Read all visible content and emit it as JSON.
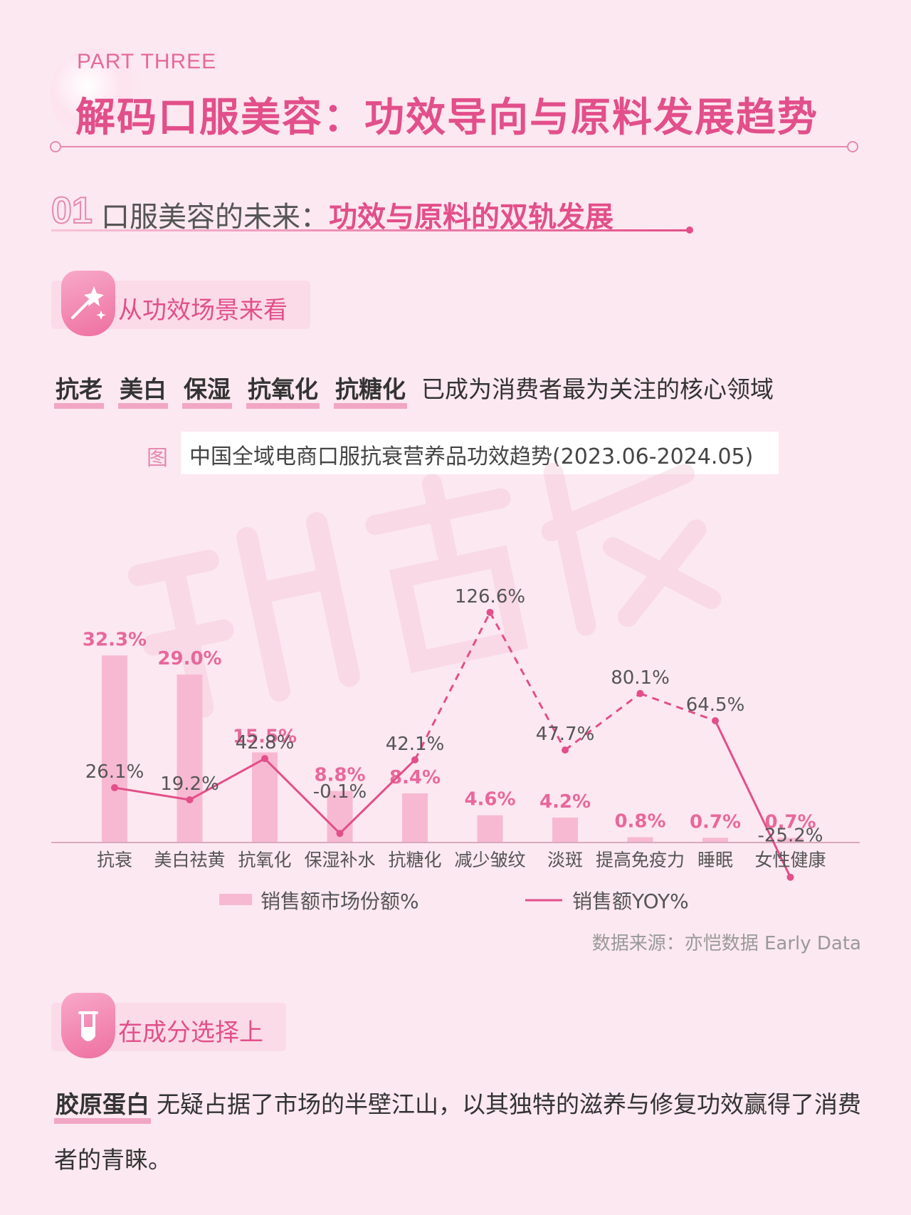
{
  "header": {
    "part": "PART THREE",
    "title": "解码口服美容：功效导向与原料发展趋势"
  },
  "section": {
    "number": "01",
    "title_prefix": "口服美容的未来：",
    "title_highlight": "功效与原料的双轨发展"
  },
  "subheading1": {
    "label": "从功效场景来看",
    "icon": "magic-wand-sparkle-icon"
  },
  "tagline": {
    "tags": [
      "抗老",
      "美白",
      "保湿",
      "抗氧化",
      "抗糖化"
    ],
    "rest": "已成为消费者最为关注的核心领域"
  },
  "figure": {
    "label": "图",
    "title": "中国全域电商口服抗衰营养品功效趋势(2023.06-2024.05)"
  },
  "chart_data": {
    "type": "bar",
    "categories": [
      "抗衰",
      "美白祛黄",
      "抗氧化",
      "保湿补水",
      "抗糖化",
      "减少皱纹",
      "淡斑",
      "提高免疫力",
      "睡眠",
      "女性健康"
    ],
    "series": [
      {
        "name": "销售额市场份额%",
        "type": "bar",
        "values": [
          32.3,
          29.0,
          15.5,
          8.8,
          8.4,
          4.6,
          4.2,
          0.8,
          0.7,
          0.7
        ],
        "labels": [
          "32.3%",
          "29.0%",
          "15.5%",
          "8.8%",
          "8.4%",
          "4.6%",
          "4.2%",
          "0.8%",
          "0.7%",
          "0.7%"
        ]
      },
      {
        "name": "销售额YOY%",
        "type": "line",
        "values": [
          26.1,
          19.2,
          42.8,
          -0.1,
          42.1,
          126.6,
          47.7,
          80.1,
          64.5,
          -25.2
        ],
        "labels": [
          "26.1%",
          "19.2%",
          "42.8%",
          "-0.1%",
          "42.1%",
          "126.6%",
          "47.7%",
          "80.1%",
          "64.5%",
          "-25.2%"
        ]
      }
    ],
    "legend_position": "bottom",
    "grid": false,
    "colors": {
      "bar": "#f7b9d1",
      "bar_label": "#e8689c",
      "line": "#e24f8a",
      "line_label": "#555555"
    }
  },
  "source": "数据来源：亦恺数据 Early Data",
  "subheading2": {
    "label": "在成分选择上",
    "icon": "test-tube-icon"
  },
  "paragraph": {
    "tag": "胶原蛋白",
    "text": "无疑占据了市场的半壁江山，以其独特的滋养与修复功效赢得了消费者的青睐。"
  }
}
